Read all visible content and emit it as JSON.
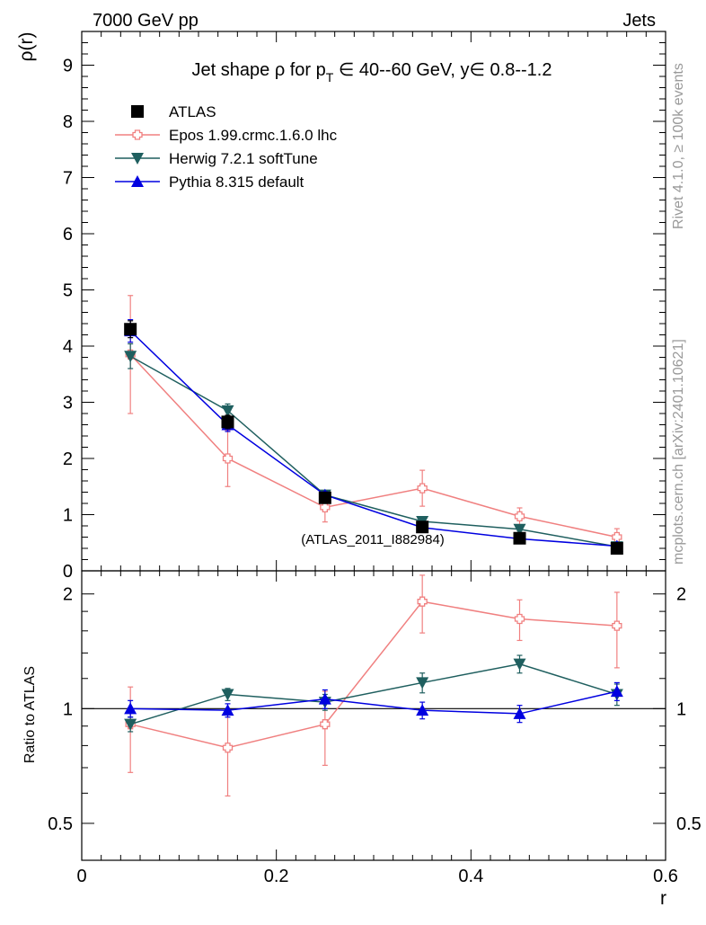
{
  "header": {
    "left": "7000 GeV pp",
    "right": "Jets"
  },
  "side_labels": {
    "rivet": "Rivet 4.1.0, ≥ 100k events",
    "mcplots": "mcplots.cern.ch [arXiv:2401.10621]"
  },
  "watermark": "(ATLAS_2011_I882984)",
  "colors": {
    "atlas": "#000000",
    "epos": "#f08080",
    "herwig": "#1f5f5f",
    "pythia": "#0000e0"
  },
  "chart_data": [
    {
      "type": "line",
      "title": "Jet shape ρ for p_T ∈ 40--60 GeV, y∈ 0.8--1.2",
      "title_parts": {
        "pre": "Jet shape ρ for p",
        "sub": "T",
        "post": " ∈ 40--60 GeV, y∈ 0.8--1.2"
      },
      "ylabel": "ρ(r)",
      "xlabel": "r",
      "xlim": [
        0,
        0.6
      ],
      "ylim": [
        0,
        9.6
      ],
      "yticks": [
        0,
        1,
        2,
        3,
        4,
        5,
        6,
        7,
        8,
        9
      ],
      "x": [
        0.05,
        0.15,
        0.25,
        0.35,
        0.45,
        0.55
      ],
      "series": [
        {
          "name": "ATLAS",
          "key": "atlas",
          "marker": "square",
          "values": [
            4.3,
            2.65,
            1.3,
            0.78,
            0.58,
            0.4
          ],
          "errors": [
            0.15,
            0.12,
            0.06,
            0.04,
            0.03,
            0.02
          ]
        },
        {
          "name": "Epos 1.99.crmc.1.6.0 lhc",
          "key": "epos",
          "marker": "cross",
          "values": [
            3.85,
            2.0,
            1.13,
            1.47,
            0.97,
            0.6
          ],
          "errors": [
            1.05,
            0.5,
            0.26,
            0.32,
            0.15,
            0.15
          ]
        },
        {
          "name": "Herwig 7.2.1 softTune",
          "key": "herwig",
          "marker": "triangle-down",
          "values": [
            3.82,
            2.85,
            1.35,
            0.88,
            0.74,
            0.43
          ],
          "errors": [
            0.22,
            0.12,
            0.06,
            0.04,
            0.03,
            0.02
          ]
        },
        {
          "name": "Pythia 8.315 default",
          "key": "pythia",
          "marker": "triangle-up",
          "values": [
            4.27,
            2.6,
            1.35,
            0.77,
            0.57,
            0.44
          ],
          "errors": [
            0.2,
            0.12,
            0.06,
            0.04,
            0.03,
            0.02
          ]
        }
      ]
    },
    {
      "type": "line",
      "ylabel": "Ratio to ATLAS",
      "xlabel": "r",
      "xlim": [
        0,
        0.6
      ],
      "ylim": [
        0.4,
        2.3
      ],
      "yticks": [
        0.5,
        1,
        2
      ],
      "xticks": [
        0,
        0.2,
        0.4,
        0.6
      ],
      "x": [
        0.05,
        0.15,
        0.25,
        0.35,
        0.45,
        0.55
      ],
      "series": [
        {
          "name": "Epos 1.99.crmc.1.6.0 lhc",
          "key": "epos",
          "marker": "cross",
          "values": [
            0.91,
            0.79,
            0.91,
            1.91,
            1.72,
            1.65
          ],
          "errors": [
            0.23,
            0.2,
            0.2,
            0.33,
            0.21,
            0.37
          ]
        },
        {
          "name": "Herwig 7.2.1 softTune",
          "key": "herwig",
          "marker": "triangle-down",
          "values": [
            0.91,
            1.09,
            1.04,
            1.17,
            1.31,
            1.09
          ],
          "errors": [
            0.04,
            0.04,
            0.05,
            0.07,
            0.07,
            0.07
          ]
        },
        {
          "name": "Pythia 8.315 default",
          "key": "pythia",
          "marker": "triangle-up",
          "values": [
            1.0,
            0.99,
            1.06,
            0.99,
            0.97,
            1.11
          ],
          "errors": [
            0.05,
            0.04,
            0.06,
            0.05,
            0.05,
            0.06
          ]
        }
      ]
    }
  ]
}
